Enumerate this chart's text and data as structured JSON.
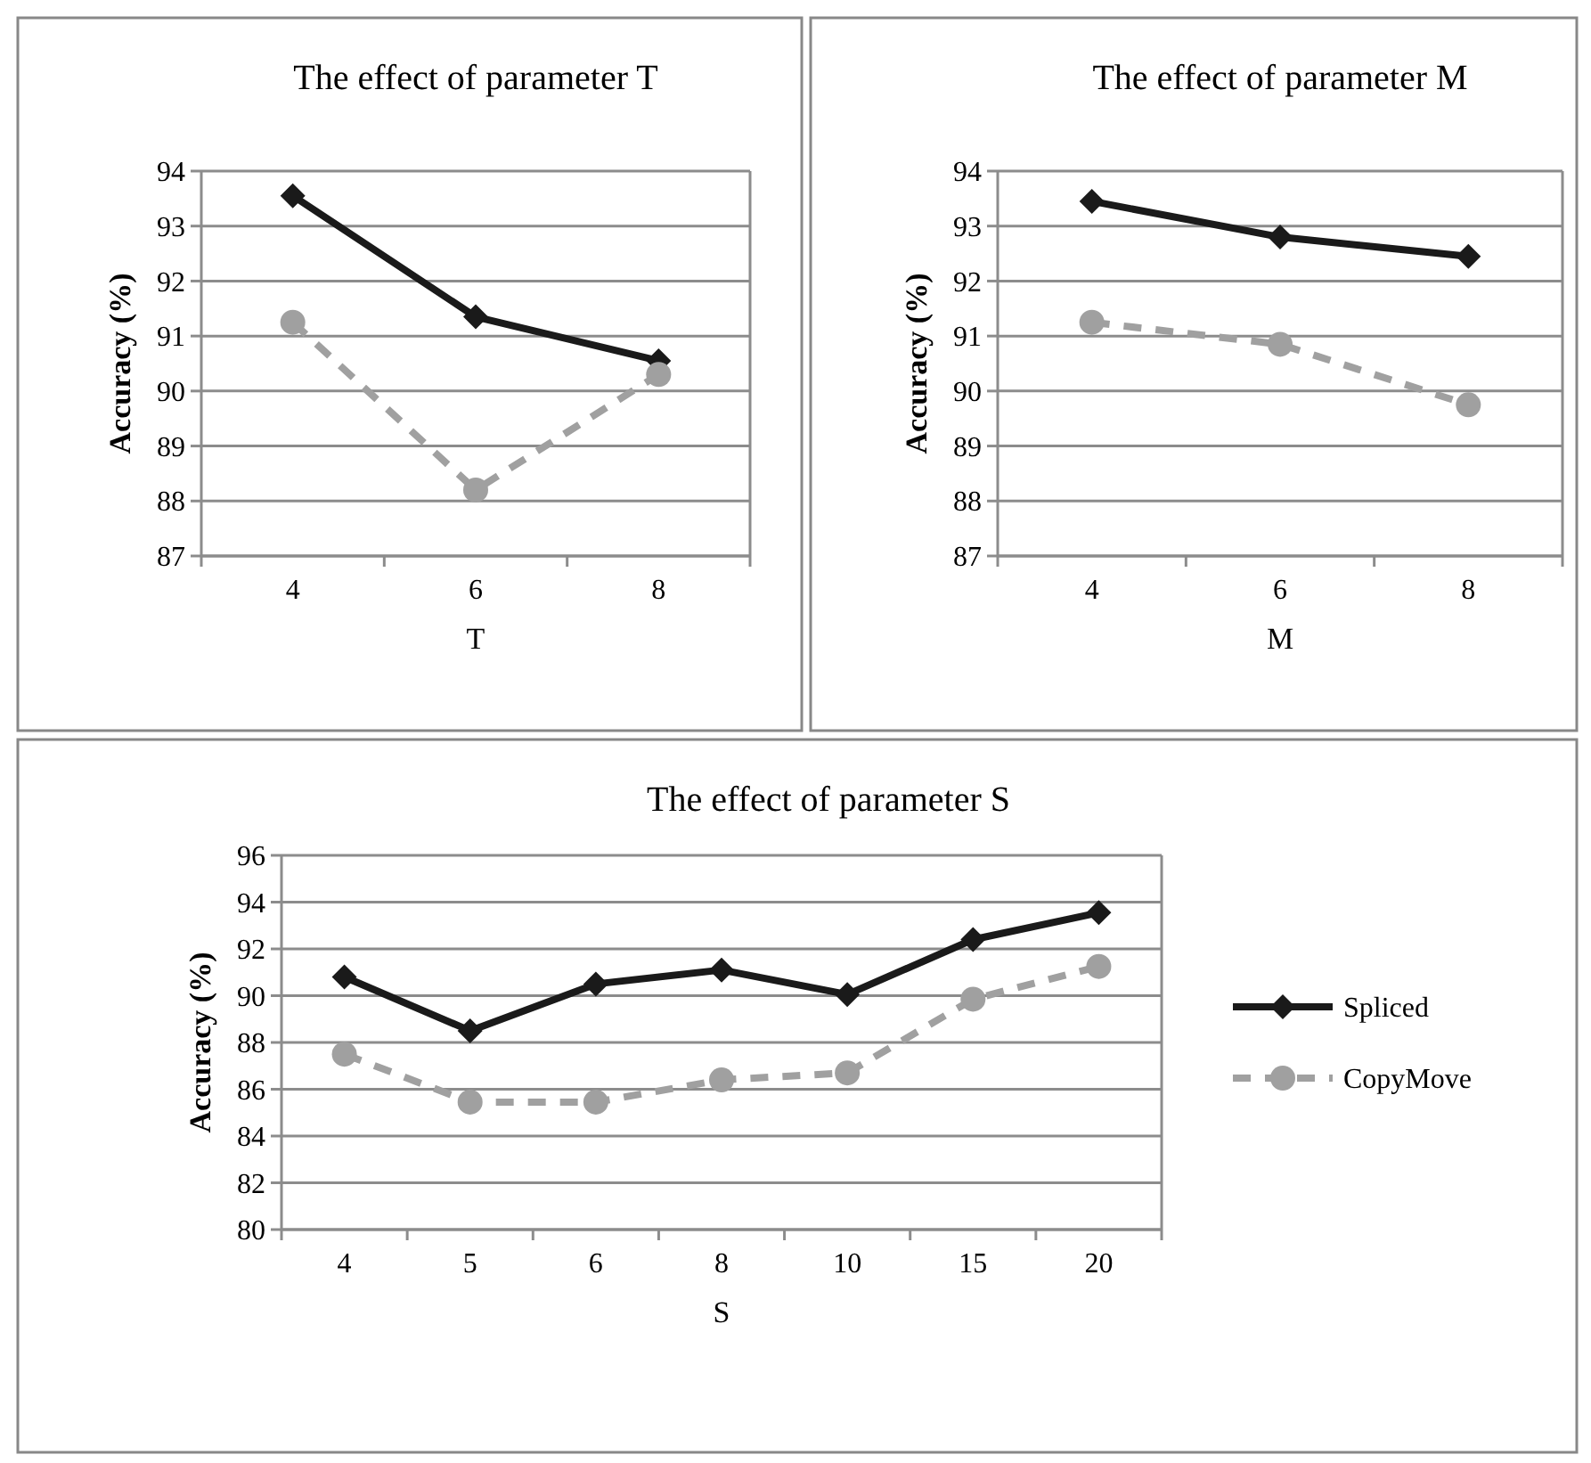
{
  "chart_data": [
    {
      "type": "line",
      "title": "The effect of parameter T",
      "xlabel": "T",
      "ylabel": "Accuracy (%)",
      "categories": [
        "4",
        "6",
        "8"
      ],
      "ylim": [
        87,
        94
      ],
      "yticks": [
        87,
        88,
        89,
        90,
        91,
        92,
        93,
        94
      ],
      "grid": "y",
      "legend": false,
      "series": [
        {
          "color": "#1a1a1a",
          "marker": "diamond",
          "line_style": "solid",
          "values": [
            93.55,
            91.35,
            90.55
          ]
        },
        {
          "color": "#a0a0a0",
          "marker": "circle",
          "line_style": "dashed",
          "values": [
            91.25,
            88.2,
            90.3
          ]
        }
      ]
    },
    {
      "type": "line",
      "title": "The effect of parameter M",
      "xlabel": "M",
      "ylabel": "Accuracy (%)",
      "categories": [
        "4",
        "6",
        "8"
      ],
      "ylim": [
        87,
        94
      ],
      "yticks": [
        87,
        88,
        89,
        90,
        91,
        92,
        93,
        94
      ],
      "grid": "y",
      "legend": false,
      "series": [
        {
          "color": "#1a1a1a",
          "marker": "diamond",
          "line_style": "solid",
          "values": [
            93.45,
            92.8,
            92.45
          ]
        },
        {
          "color": "#a0a0a0",
          "marker": "circle",
          "line_style": "dashed",
          "values": [
            91.25,
            90.85,
            89.75
          ]
        }
      ]
    },
    {
      "type": "line",
      "title": "The effect of parameter S",
      "xlabel": "S",
      "ylabel": "Accuracy (%)",
      "categories": [
        "4",
        "5",
        "6",
        "8",
        "10",
        "15",
        "20"
      ],
      "ylim": [
        80,
        96
      ],
      "yticks": [
        80,
        82,
        84,
        86,
        88,
        90,
        92,
        94,
        96
      ],
      "grid": "y",
      "legend": "right",
      "series": [
        {
          "name": "Spliced",
          "color": "#1a1a1a",
          "marker": "diamond",
          "line_style": "solid",
          "values": [
            90.8,
            88.5,
            90.5,
            91.1,
            90.05,
            92.4,
            93.55
          ]
        },
        {
          "name": "CopyMove",
          "color": "#a0a0a0",
          "marker": "circle",
          "line_style": "dashed",
          "values": [
            87.5,
            85.45,
            85.45,
            86.4,
            86.7,
            89.85,
            91.25
          ]
        }
      ]
    }
  ]
}
